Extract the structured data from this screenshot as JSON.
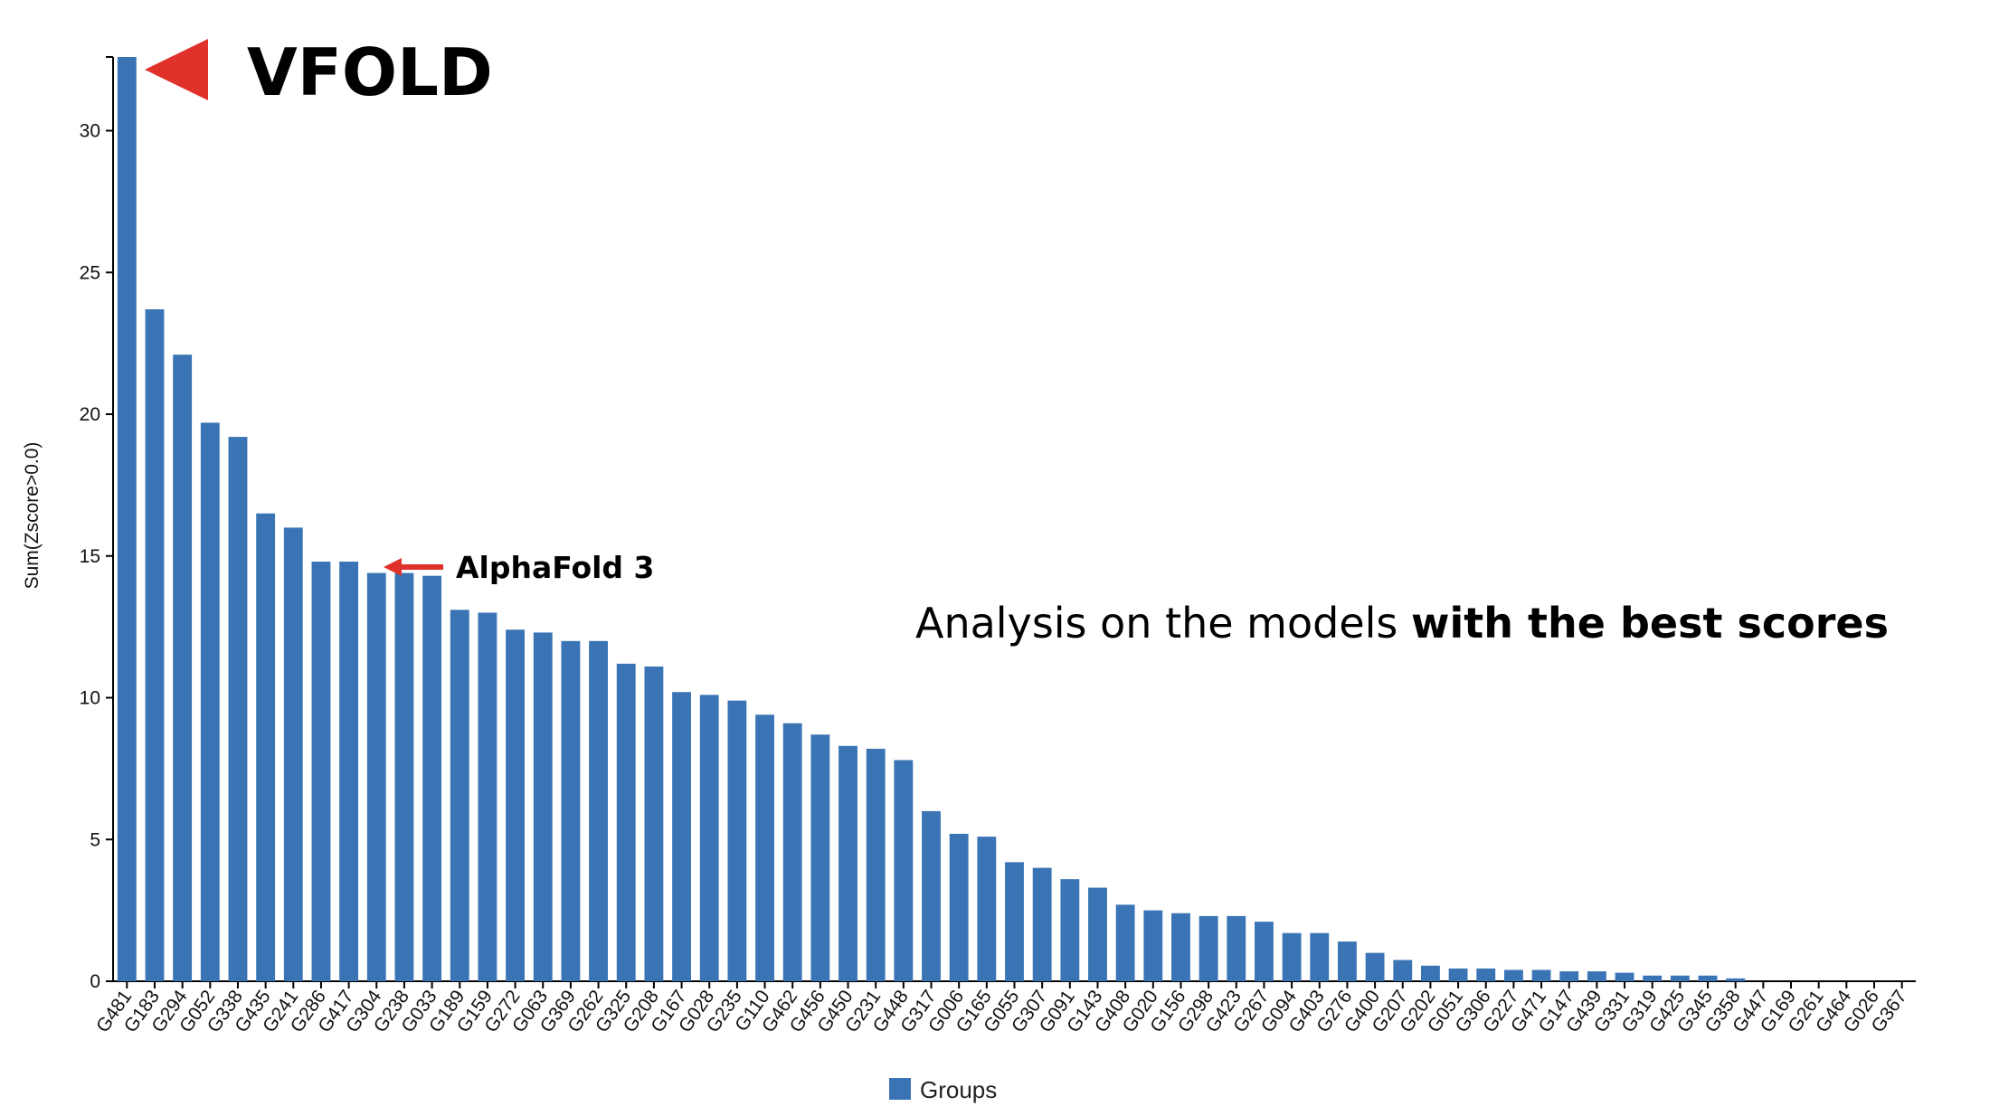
{
  "chart_data": {
    "type": "bar",
    "ylabel": "Sum(Zscore>0.0)",
    "xlabel": "",
    "ylim": [
      0,
      32.6
    ],
    "yticks": [
      0,
      5,
      10,
      15,
      20,
      25,
      30
    ],
    "grid": false,
    "legend": {
      "position": "bottom-center",
      "entries": [
        "Groups"
      ]
    },
    "series": [
      {
        "name": "Groups",
        "color": "#3a74b5"
      }
    ],
    "categories": [
      "G481",
      "G183",
      "G294",
      "G052",
      "G338",
      "G435",
      "G241",
      "G286",
      "G417",
      "G304",
      "G238",
      "G033",
      "G189",
      "G159",
      "G272",
      "G063",
      "G369",
      "G262",
      "G325",
      "G208",
      "G167",
      "G028",
      "G235",
      "G110",
      "G462",
      "G456",
      "G450",
      "G231",
      "G448",
      "G317",
      "G006",
      "G165",
      "G055",
      "G307",
      "G091",
      "G143",
      "G408",
      "G020",
      "G156",
      "G298",
      "G423",
      "G267",
      "G094",
      "G403",
      "G276",
      "G400",
      "G207",
      "G202",
      "G051",
      "G306",
      "G227",
      "G471",
      "G147",
      "G439",
      "G331",
      "G319",
      "G425",
      "G345",
      "G358",
      "G447",
      "G169",
      "G261",
      "G464",
      "G026",
      "G367"
    ],
    "values": [
      32.6,
      23.7,
      22.1,
      19.7,
      19.2,
      16.5,
      16.0,
      14.8,
      14.8,
      14.4,
      14.4,
      14.3,
      13.1,
      13.0,
      12.4,
      12.3,
      12.0,
      12.0,
      11.2,
      11.1,
      10.2,
      10.1,
      9.9,
      9.4,
      9.1,
      8.7,
      8.3,
      8.2,
      7.8,
      6.0,
      5.2,
      5.1,
      4.2,
      4.0,
      3.6,
      3.3,
      2.7,
      2.5,
      2.4,
      2.3,
      2.3,
      2.1,
      1.7,
      1.7,
      1.4,
      1.0,
      0.75,
      0.55,
      0.45,
      0.45,
      0.4,
      0.4,
      0.35,
      0.35,
      0.3,
      0.2,
      0.2,
      0.2,
      0.1,
      0.0,
      0.0,
      0.0,
      0.0,
      0.0,
      0.0
    ]
  },
  "annotations": {
    "vfold_label": "VFOLD",
    "vfold_color": "#e0312b",
    "alphafold_label": "AlphaFold 3",
    "alphafold_color": "#e0312b",
    "analysis_prefix": "Analysis on the models ",
    "analysis_bold": "with the best scores"
  }
}
